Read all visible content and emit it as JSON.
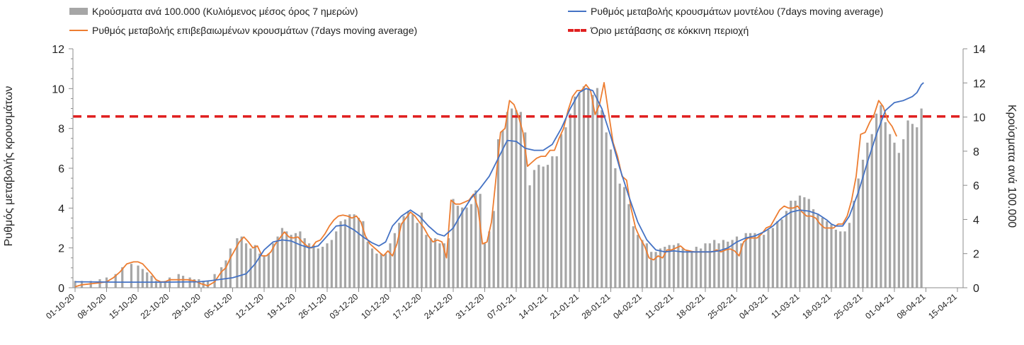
{
  "chart_data": {
    "type": "bar+line",
    "x_labels": [
      "01-10-20",
      "08-10-20",
      "15-10-20",
      "22-10-20",
      "29-10-20",
      "05-11-20",
      "12-11-20",
      "19-11-20",
      "26-11-20",
      "03-12-20",
      "10-12-20",
      "17-12-20",
      "24-12-20",
      "31-12-20",
      "07-01-21",
      "14-01-21",
      "21-01-21",
      "28-01-21",
      "04-02-21",
      "11-02-21",
      "18-02-21",
      "25-02-21",
      "04-03-21",
      "11-03-21",
      "18-03-21",
      "25-03-21",
      "01-04-21",
      "08-04-21",
      "15-04-21"
    ],
    "left_axis": {
      "label": "Ρυθμός μεταβολής κρουσμάτων",
      "min": 0,
      "max": 12,
      "ticks": [
        "0",
        "2",
        "4",
        "6",
        "8",
        "10",
        "12"
      ]
    },
    "right_axis": {
      "label": "Κρούσματα ανά 100.000",
      "min": 0,
      "max": 14,
      "ticks": [
        "0",
        "2",
        "4",
        "6",
        "8",
        "10",
        "12",
        "14"
      ]
    },
    "legend": {
      "bars": "Κρούσματα ανά 100.000 (Κυλιόμενος μέσος όρος 7 ημερών)",
      "model": "Ρυθμός μεταβολής κρουσμάτων μοντέλου (7days moving average)",
      "confirmed": "Ρυθμός μεταβολής επιβεβαιωμένων κρουσμάτων (7days moving average)",
      "threshold": "Όριο μετάβασης σε κόκκινη περιοχή"
    },
    "threshold_value": 8.6,
    "bars_right_axis": [
      [
        0,
        0.4
      ],
      [
        3,
        0.4
      ],
      [
        7,
        0.4
      ],
      [
        11,
        0.5
      ],
      [
        14,
        0.6
      ],
      [
        18,
        0.8
      ],
      [
        21,
        1.2
      ],
      [
        25,
        1.4
      ],
      [
        28,
        1.3
      ],
      [
        30,
        1.1
      ],
      [
        32,
        0.9
      ],
      [
        34,
        0.7
      ],
      [
        36,
        0.4
      ],
      [
        38,
        0.3
      ],
      [
        40,
        0.4
      ],
      [
        42,
        0.6
      ],
      [
        46,
        0.8
      ],
      [
        48,
        0.7
      ],
      [
        51,
        0.6
      ],
      [
        53,
        0.5
      ],
      [
        55,
        0.5
      ],
      [
        57,
        0.4
      ],
      [
        59,
        0.4
      ],
      [
        62,
        0.8
      ],
      [
        65,
        1.2
      ],
      [
        67,
        1.6
      ],
      [
        69,
        2.3
      ],
      [
        72,
        2.9
      ],
      [
        74,
        3.0
      ],
      [
        76,
        2.6
      ],
      [
        78,
        2.3
      ],
      [
        80,
        2.5
      ],
      [
        82,
        2.0
      ],
      [
        84,
        1.9
      ],
      [
        86,
        2.0
      ],
      [
        88,
        2.6
      ],
      [
        90,
        3.0
      ],
      [
        92,
        3.5
      ],
      [
        94,
        3.3
      ],
      [
        96,
        3.1
      ],
      [
        98,
        3.2
      ],
      [
        100,
        3.3
      ],
      [
        102,
        2.9
      ],
      [
        104,
        2.6
      ],
      [
        106,
        2.5
      ],
      [
        108,
        2.3
      ],
      [
        110,
        2.4
      ],
      [
        112,
        2.6
      ],
      [
        114,
        2.8
      ],
      [
        116,
        3.3
      ],
      [
        118,
        3.9
      ],
      [
        120,
        4.0
      ],
      [
        122,
        4.3
      ],
      [
        124,
        4.3
      ],
      [
        126,
        4.1
      ],
      [
        128,
        3.9
      ],
      [
        130,
        2.7
      ],
      [
        132,
        2.3
      ],
      [
        134,
        2.0
      ],
      [
        136,
        2.0
      ],
      [
        138,
        2.0
      ],
      [
        140,
        2.6
      ],
      [
        142,
        3.2
      ],
      [
        144,
        3.8
      ],
      [
        146,
        4.2
      ],
      [
        148,
        4.5
      ],
      [
        150,
        4.3
      ],
      [
        152,
        3.8
      ],
      [
        154,
        4.4
      ],
      [
        156,
        3.1
      ],
      [
        158,
        2.9
      ],
      [
        160,
        2.9
      ],
      [
        162,
        2.6
      ],
      [
        164,
        2.6
      ],
      [
        166,
        2.9
      ],
      [
        168,
        5.2
      ],
      [
        170,
        4.8
      ],
      [
        172,
        4.7
      ],
      [
        174,
        4.7
      ],
      [
        176,
        4.9
      ],
      [
        178,
        5.7
      ],
      [
        180,
        5.5
      ],
      [
        182,
        2.6
      ],
      [
        184,
        3.3
      ],
      [
        186,
        4.5
      ],
      [
        188,
        8.7
      ],
      [
        190,
        9.2
      ],
      [
        192,
        10.3
      ],
      [
        194,
        10.5
      ],
      [
        196,
        10.4
      ],
      [
        198,
        10.3
      ],
      [
        200,
        9.1
      ],
      [
        202,
        6.0
      ],
      [
        204,
        6.9
      ],
      [
        206,
        7.2
      ],
      [
        208,
        7.1
      ],
      [
        210,
        7.2
      ],
      [
        212,
        7.7
      ],
      [
        214,
        7.7
      ],
      [
        216,
        9.0
      ],
      [
        218,
        9.4
      ],
      [
        220,
        10.2
      ],
      [
        222,
        11.2
      ],
      [
        224,
        11.4
      ],
      [
        226,
        11.8
      ],
      [
        228,
        11.6
      ],
      [
        230,
        11.3
      ],
      [
        232,
        11.7
      ],
      [
        234,
        10.4
      ],
      [
        236,
        9.1
      ],
      [
        238,
        8.1
      ],
      [
        240,
        7.0
      ],
      [
        242,
        6.1
      ],
      [
        244,
        5.9
      ],
      [
        246,
        4.9
      ],
      [
        248,
        3.6
      ],
      [
        250,
        3.1
      ],
      [
        252,
        2.8
      ],
      [
        254,
        2.6
      ],
      [
        256,
        2.1
      ],
      [
        258,
        2.1
      ],
      [
        260,
        2.3
      ],
      [
        262,
        2.4
      ],
      [
        264,
        2.5
      ],
      [
        266,
        2.5
      ],
      [
        268,
        2.6
      ],
      [
        270,
        2.3
      ],
      [
        272,
        2.2
      ],
      [
        274,
        2.1
      ],
      [
        276,
        2.4
      ],
      [
        278,
        2.3
      ],
      [
        280,
        2.6
      ],
      [
        282,
        2.6
      ],
      [
        284,
        2.8
      ],
      [
        286,
        2.6
      ],
      [
        288,
        2.8
      ],
      [
        290,
        2.7
      ],
      [
        292,
        2.8
      ],
      [
        294,
        3.0
      ],
      [
        296,
        2.6
      ],
      [
        298,
        3.2
      ],
      [
        300,
        3.2
      ],
      [
        302,
        3.2
      ],
      [
        304,
        3.1
      ],
      [
        306,
        3.1
      ],
      [
        308,
        3.4
      ],
      [
        310,
        3.5
      ],
      [
        312,
        3.9
      ],
      [
        314,
        4.0
      ],
      [
        316,
        4.5
      ],
      [
        318,
        5.1
      ],
      [
        320,
        5.1
      ],
      [
        322,
        5.4
      ],
      [
        324,
        5.3
      ],
      [
        326,
        5.2
      ],
      [
        328,
        4.6
      ],
      [
        330,
        4.3
      ],
      [
        332,
        4.1
      ],
      [
        334,
        3.9
      ],
      [
        336,
        3.7
      ],
      [
        338,
        3.4
      ],
      [
        340,
        3.3
      ],
      [
        342,
        3.3
      ],
      [
        344,
        3.8
      ],
      [
        346,
        5.1
      ],
      [
        348,
        6.4
      ],
      [
        350,
        7.5
      ],
      [
        352,
        8.5
      ],
      [
        354,
        9.0
      ],
      [
        356,
        10.2
      ],
      [
        358,
        10.7
      ],
      [
        360,
        9.7
      ],
      [
        362,
        9.0
      ],
      [
        364,
        8.5
      ],
      [
        366,
        7.9
      ],
      [
        368,
        8.7
      ],
      [
        370,
        9.8
      ],
      [
        372,
        9.6
      ],
      [
        374,
        9.4
      ],
      [
        376,
        10.5
      ]
    ],
    "model_line": [
      [
        0,
        0.3
      ],
      [
        20,
        0.28
      ],
      [
        40,
        0.28
      ],
      [
        55,
        0.3
      ],
      [
        60,
        0.35
      ],
      [
        70,
        0.5
      ],
      [
        76,
        0.7
      ],
      [
        80,
        1.2
      ],
      [
        84,
        1.9
      ],
      [
        88,
        2.3
      ],
      [
        92,
        2.4
      ],
      [
        96,
        2.35
      ],
      [
        100,
        2.15
      ],
      [
        104,
        2.0
      ],
      [
        108,
        2.1
      ],
      [
        112,
        2.6
      ],
      [
        116,
        3.1
      ],
      [
        120,
        3.15
      ],
      [
        124,
        2.9
      ],
      [
        128,
        2.55
      ],
      [
        132,
        2.25
      ],
      [
        135,
        2.1
      ],
      [
        138,
        2.3
      ],
      [
        141,
        3.1
      ],
      [
        145,
        3.6
      ],
      [
        149,
        3.9
      ],
      [
        153,
        3.6
      ],
      [
        157,
        3.1
      ],
      [
        161,
        2.7
      ],
      [
        164,
        2.6
      ],
      [
        168,
        3.0
      ],
      [
        172,
        3.8
      ],
      [
        176,
        4.5
      ],
      [
        180,
        5.0
      ],
      [
        184,
        5.6
      ],
      [
        188,
        6.5
      ],
      [
        192,
        7.4
      ],
      [
        196,
        7.35
      ],
      [
        200,
        7.0
      ],
      [
        204,
        6.9
      ],
      [
        208,
        6.9
      ],
      [
        212,
        7.2
      ],
      [
        216,
        8.0
      ],
      [
        220,
        9.0
      ],
      [
        224,
        9.8
      ],
      [
        227,
        10.0
      ],
      [
        230,
        9.9
      ],
      [
        234,
        9.0
      ],
      [
        238,
        7.6
      ],
      [
        242,
        6.0
      ],
      [
        246,
        4.6
      ],
      [
        250,
        3.3
      ],
      [
        254,
        2.4
      ],
      [
        258,
        1.9
      ],
      [
        262,
        1.8
      ],
      [
        266,
        1.85
      ],
      [
        270,
        1.8
      ],
      [
        274,
        1.8
      ],
      [
        278,
        1.8
      ],
      [
        282,
        1.8
      ],
      [
        286,
        1.85
      ],
      [
        290,
        2.0
      ],
      [
        294,
        2.3
      ],
      [
        298,
        2.5
      ],
      [
        302,
        2.6
      ],
      [
        306,
        2.8
      ],
      [
        310,
        3.1
      ],
      [
        314,
        3.5
      ],
      [
        318,
        3.8
      ],
      [
        322,
        3.9
      ],
      [
        326,
        3.85
      ],
      [
        330,
        3.7
      ],
      [
        334,
        3.4
      ],
      [
        336,
        3.2
      ],
      [
        338,
        3.1
      ],
      [
        341,
        3.1
      ],
      [
        344,
        3.6
      ],
      [
        348,
        4.8
      ],
      [
        352,
        6.3
      ],
      [
        356,
        7.7
      ],
      [
        360,
        8.9
      ],
      [
        364,
        9.3
      ],
      [
        368,
        9.4
      ],
      [
        372,
        9.6
      ],
      [
        374,
        9.8
      ],
      [
        376,
        10.2
      ],
      [
        377,
        10.3
      ]
    ],
    "confirmed_line": [
      [
        0,
        0.05
      ],
      [
        3,
        0.15
      ],
      [
        7,
        0.2
      ],
      [
        11,
        0.25
      ],
      [
        14,
        0.3
      ],
      [
        17,
        0.5
      ],
      [
        20,
        0.8
      ],
      [
        23,
        1.2
      ],
      [
        26,
        1.3
      ],
      [
        28,
        1.3
      ],
      [
        30,
        1.2
      ],
      [
        32,
        0.95
      ],
      [
        34,
        0.7
      ],
      [
        36,
        0.4
      ],
      [
        38,
        0.3
      ],
      [
        40,
        0.3
      ],
      [
        42,
        0.4
      ],
      [
        46,
        0.4
      ],
      [
        50,
        0.4
      ],
      [
        53,
        0.35
      ],
      [
        56,
        0.2
      ],
      [
        59,
        0.1
      ],
      [
        62,
        0.3
      ],
      [
        65,
        0.8
      ],
      [
        67,
        1.0
      ],
      [
        69,
        1.5
      ],
      [
        71,
        1.9
      ],
      [
        73,
        2.3
      ],
      [
        75,
        2.55
      ],
      [
        77,
        2.3
      ],
      [
        79,
        2.0
      ],
      [
        81,
        2.1
      ],
      [
        83,
        1.6
      ],
      [
        85,
        1.6
      ],
      [
        87,
        1.8
      ],
      [
        89,
        2.2
      ],
      [
        91,
        2.5
      ],
      [
        93,
        2.8
      ],
      [
        95,
        2.55
      ],
      [
        97,
        2.5
      ],
      [
        99,
        2.55
      ],
      [
        101,
        2.3
      ],
      [
        103,
        2.1
      ],
      [
        105,
        2.0
      ],
      [
        107,
        2.3
      ],
      [
        109,
        2.4
      ],
      [
        111,
        2.7
      ],
      [
        113,
        3.1
      ],
      [
        115,
        3.4
      ],
      [
        117,
        3.6
      ],
      [
        119,
        3.65
      ],
      [
        121,
        3.6
      ],
      [
        123,
        3.5
      ],
      [
        125,
        3.6
      ],
      [
        127,
        3.3
      ],
      [
        129,
        2.6
      ],
      [
        131,
        2.2
      ],
      [
        133,
        2.0
      ],
      [
        135,
        1.8
      ],
      [
        137,
        1.6
      ],
      [
        139,
        1.85
      ],
      [
        141,
        1.6
      ],
      [
        143,
        2.2
      ],
      [
        145,
        3.2
      ],
      [
        147,
        3.5
      ],
      [
        149,
        3.8
      ],
      [
        151,
        3.6
      ],
      [
        153,
        3.3
      ],
      [
        155,
        3.0
      ],
      [
        157,
        2.6
      ],
      [
        159,
        2.3
      ],
      [
        161,
        2.4
      ],
      [
        163,
        2.3
      ],
      [
        165,
        1.5
      ],
      [
        167,
        4.4
      ],
      [
        169,
        4.2
      ],
      [
        171,
        4.2
      ],
      [
        173,
        4.3
      ],
      [
        175,
        4.4
      ],
      [
        177,
        4.7
      ],
      [
        179,
        4.0
      ],
      [
        181,
        2.2
      ],
      [
        183,
        2.3
      ],
      [
        185,
        3.3
      ],
      [
        187,
        5.5
      ],
      [
        189,
        7.8
      ],
      [
        191,
        8.0
      ],
      [
        193,
        9.4
      ],
      [
        195,
        9.2
      ],
      [
        197,
        8.6
      ],
      [
        199,
        7.8
      ],
      [
        201,
        6.1
      ],
      [
        203,
        6.3
      ],
      [
        205,
        6.5
      ],
      [
        207,
        6.6
      ],
      [
        209,
        6.6
      ],
      [
        211,
        6.9
      ],
      [
        213,
        6.9
      ],
      [
        215,
        7.5
      ],
      [
        217,
        8.0
      ],
      [
        219,
        8.9
      ],
      [
        221,
        9.6
      ],
      [
        223,
        9.9
      ],
      [
        225,
        9.9
      ],
      [
        227,
        10.2
      ],
      [
        229,
        9.9
      ],
      [
        231,
        8.7
      ],
      [
        233,
        9.2
      ],
      [
        235,
        10.3
      ],
      [
        237,
        8.8
      ],
      [
        239,
        7.3
      ],
      [
        241,
        6.6
      ],
      [
        243,
        5.6
      ],
      [
        245,
        5.4
      ],
      [
        247,
        4.0
      ],
      [
        249,
        3.0
      ],
      [
        251,
        2.5
      ],
      [
        253,
        2.1
      ],
      [
        255,
        1.5
      ],
      [
        257,
        1.4
      ],
      [
        259,
        1.6
      ],
      [
        261,
        1.5
      ],
      [
        263,
        1.9
      ],
      [
        265,
        1.9
      ],
      [
        267,
        2.0
      ],
      [
        269,
        2.1
      ],
      [
        271,
        1.9
      ],
      [
        273,
        1.85
      ],
      [
        275,
        1.8
      ],
      [
        277,
        1.8
      ],
      [
        279,
        1.8
      ],
      [
        281,
        1.8
      ],
      [
        283,
        1.8
      ],
      [
        285,
        1.9
      ],
      [
        287,
        1.8
      ],
      [
        289,
        1.9
      ],
      [
        291,
        1.95
      ],
      [
        293,
        1.85
      ],
      [
        295,
        1.6
      ],
      [
        297,
        2.3
      ],
      [
        299,
        2.5
      ],
      [
        301,
        2.5
      ],
      [
        303,
        2.5
      ],
      [
        305,
        2.7
      ],
      [
        307,
        3.0
      ],
      [
        309,
        3.1
      ],
      [
        311,
        3.5
      ],
      [
        313,
        3.9
      ],
      [
        315,
        4.1
      ],
      [
        317,
        4.0
      ],
      [
        319,
        4.0
      ],
      [
        321,
        4.1
      ],
      [
        323,
        3.8
      ],
      [
        325,
        3.6
      ],
      [
        327,
        3.6
      ],
      [
        329,
        3.5
      ],
      [
        331,
        3.2
      ],
      [
        333,
        3.0
      ],
      [
        335,
        3.0
      ],
      [
        337,
        3.0
      ],
      [
        339,
        3.2
      ],
      [
        341,
        3.2
      ],
      [
        343,
        3.6
      ],
      [
        345,
        4.4
      ],
      [
        347,
        5.6
      ],
      [
        349,
        7.7
      ],
      [
        351,
        7.8
      ],
      [
        353,
        8.3
      ],
      [
        355,
        8.7
      ],
      [
        357,
        9.4
      ],
      [
        359,
        9.1
      ],
      [
        361,
        8.4
      ],
      [
        363,
        8.1
      ],
      [
        365,
        7.6
      ]
    ]
  }
}
